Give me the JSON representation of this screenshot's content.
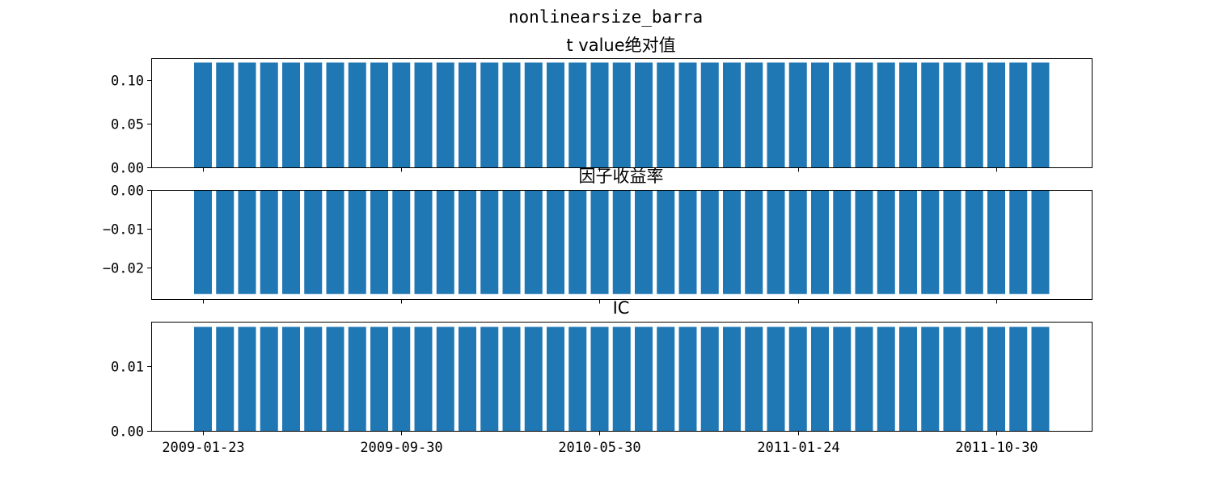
{
  "chart_data": {
    "suptitle": "nonlinearsize_barra",
    "type": "bar",
    "bar_color": "#1f77b4",
    "bar_count": 39,
    "x_tick_labels": [
      "2009-01-23",
      "2009-09-30",
      "2010-05-30",
      "2011-01-24",
      "2011-10-30"
    ],
    "panels": [
      {
        "title": "t value绝对值",
        "ylim": [
          0,
          0.1245
        ],
        "yticks": [
          0.0,
          0.05,
          0.1
        ],
        "ytick_labels": [
          "0.00",
          "0.05",
          "0.10"
        ],
        "value": 0.1195
      },
      {
        "title": "因子收益率",
        "ylim": [
          -0.0281,
          0.0
        ],
        "yticks": [
          0.0,
          -0.01,
          -0.02
        ],
        "ytick_labels": [
          "0.00",
          "−0.01",
          "−0.02"
        ],
        "value": -0.0268
      },
      {
        "title": "IC",
        "ylim": [
          0,
          0.0169
        ],
        "yticks": [
          0.0,
          0.01
        ],
        "ytick_labels": [
          "0.00",
          "0.01"
        ],
        "value": 0.0161
      }
    ]
  }
}
